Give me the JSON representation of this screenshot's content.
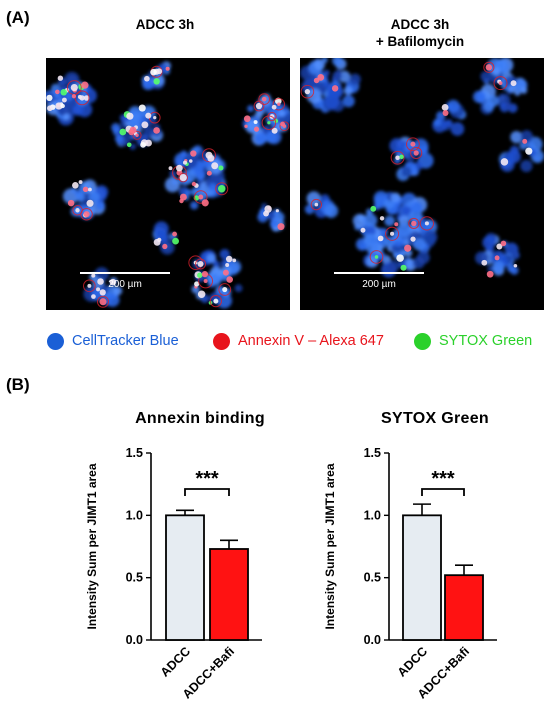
{
  "panel_a_label": "(A)",
  "panel_b_label": "(B)",
  "images": [
    {
      "title_line1": "ADCC 3h",
      "title_line2": "",
      "scale_bar": "200 µm"
    },
    {
      "title_line1": "ADCC 3h",
      "title_line2": "+ Bafilomycin",
      "scale_bar": "200 µm"
    }
  ],
  "legend": [
    {
      "label": "CellTracker Blue",
      "color": "#1a5fd6"
    },
    {
      "label": "Annexin V – Alexa 647",
      "color": "#e8141c"
    },
    {
      "label": "SYTOX Green",
      "color": "#2bd12b"
    }
  ],
  "chart_data": [
    {
      "type": "bar",
      "title": "Annexin binding",
      "ylabel": "Intensity Sum per JIMT1 area",
      "categories": [
        "ADCC",
        "ADCC+Bafi"
      ],
      "values": [
        1.0,
        0.73
      ],
      "errors": [
        0.04,
        0.07
      ],
      "bar_colors": [
        "#e6ecf2",
        "#ff1212"
      ],
      "ylim": [
        0,
        1.5
      ],
      "yticks": [
        "0.0",
        "0.5",
        "1.0",
        "1.5"
      ],
      "significance": "***"
    },
    {
      "type": "bar",
      "title": "SYTOX Green",
      "ylabel": "Intensity Sum per JIMT1 area",
      "categories": [
        "ADCC",
        "ADCC+Bafi"
      ],
      "values": [
        1.0,
        0.52
      ],
      "errors": [
        0.09,
        0.08
      ],
      "bar_colors": [
        "#e6ecf2",
        "#ff1212"
      ],
      "ylim": [
        0,
        1.5
      ],
      "yticks": [
        "0.0",
        "0.5",
        "1.0",
        "1.5"
      ],
      "significance": "***"
    }
  ]
}
